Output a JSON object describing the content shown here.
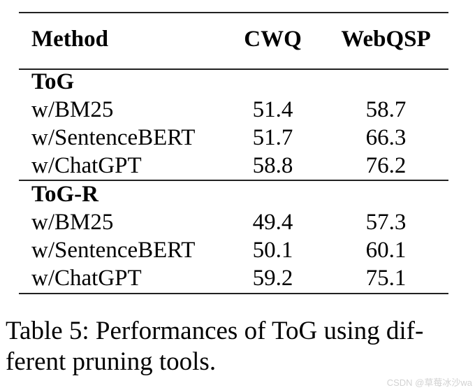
{
  "table": {
    "columns": [
      "Method",
      "CWQ",
      "WebQSP"
    ],
    "sections": [
      {
        "header": "ToG",
        "rows": [
          {
            "method": "w/BM25",
            "cwq": "51.4",
            "webqsp": "58.7"
          },
          {
            "method": "w/SentenceBERT",
            "cwq": "51.7",
            "webqsp": "66.3"
          },
          {
            "method": "w/ChatGPT",
            "cwq": "58.8",
            "webqsp": "76.2"
          }
        ]
      },
      {
        "header": "ToG-R",
        "rows": [
          {
            "method": "w/BM25",
            "cwq": "49.4",
            "webqsp": "57.3"
          },
          {
            "method": "w/SentenceBERT",
            "cwq": "50.1",
            "webqsp": "60.1"
          },
          {
            "method": "w/ChatGPT",
            "cwq": "59.2",
            "webqsp": "75.1"
          }
        ]
      }
    ]
  },
  "caption": {
    "line1": "Table 5: Performances of ToG using dif-",
    "line2": "ferent pruning tools."
  },
  "watermark": {
    "text": "CSDN @草莓冰沙wa",
    "color": "#d2d2d2"
  },
  "colors": {
    "text": "#000000",
    "background": "#ffffff",
    "rule": "#222222"
  }
}
